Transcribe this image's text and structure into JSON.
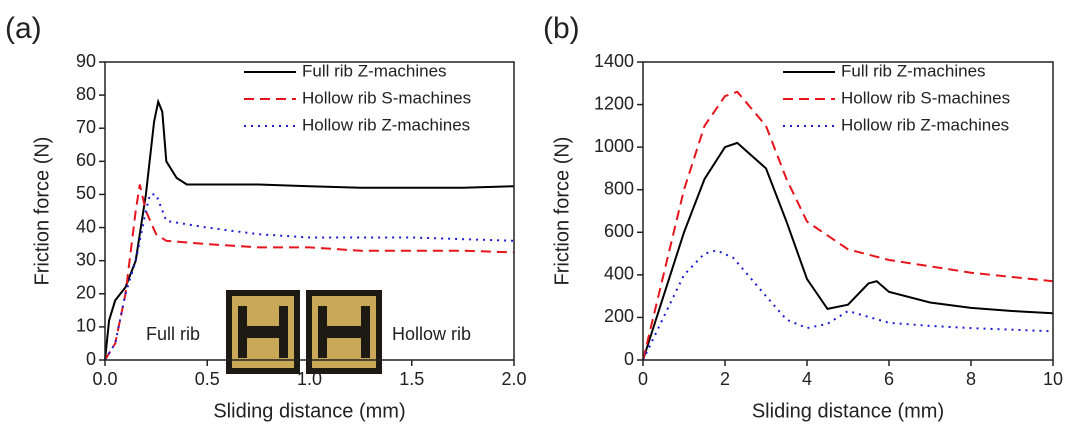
{
  "chart_data": [
    {
      "type": "line",
      "panel_label": "(a)",
      "xlabel": "Sliding distance (mm)",
      "ylabel": "Friction force (N)",
      "xlim": [
        0,
        2
      ],
      "xticks": [
        {
          "value": 0,
          "label": "0.0"
        },
        0.5,
        {
          "value": 1,
          "label": "1.0"
        },
        1.5,
        {
          "value": 2,
          "label": "2.0"
        }
      ],
      "ylim": [
        0,
        90
      ],
      "yticks": [
        0,
        10,
        20,
        30,
        40,
        50,
        60,
        70,
        80,
        90
      ],
      "legend": "upper right",
      "annotations": [
        "Full rib",
        "Hollow rib"
      ],
      "series": [
        {
          "name": "Full rib Z-machines",
          "color": "#000000",
          "line_style": "solid",
          "x": [
            0,
            0.02,
            0.05,
            0.1,
            0.15,
            0.2,
            0.24,
            0.26,
            0.28,
            0.3,
            0.35,
            0.4,
            0.5,
            0.75,
            1.0,
            1.25,
            1.5,
            1.75,
            2.0
          ],
          "values": [
            0,
            12,
            18,
            22,
            30,
            50,
            72,
            78,
            75,
            60,
            55,
            53,
            53,
            53,
            52.5,
            52,
            52,
            52,
            52.5
          ]
        },
        {
          "name": "Hollow rib S-machines",
          "color": "#e8141b",
          "line_style": "dashed",
          "x": [
            0,
            0.05,
            0.1,
            0.15,
            0.17,
            0.2,
            0.25,
            0.3,
            0.5,
            0.75,
            1.0,
            1.25,
            1.5,
            1.75,
            2.0
          ],
          "values": [
            0,
            5,
            20,
            45,
            53,
            45,
            38,
            36,
            35,
            34,
            34,
            33,
            33,
            33,
            32.5
          ]
        },
        {
          "name": "Hollow rib Z-machines",
          "color": "#1a1ad6",
          "line_style": "dotted",
          "x": [
            0,
            0.05,
            0.1,
            0.15,
            0.2,
            0.22,
            0.25,
            0.3,
            0.5,
            0.75,
            1.0,
            1.5,
            2.0
          ],
          "values": [
            0,
            5,
            20,
            30,
            45,
            50,
            50,
            42,
            40,
            38,
            37,
            37,
            36
          ]
        }
      ]
    },
    {
      "type": "line",
      "panel_label": "(b)",
      "xlabel": "Sliding distance (mm)",
      "ylabel": "Friction force (N)",
      "xlim": [
        0,
        10
      ],
      "xticks": [
        0,
        2,
        4,
        6,
        8,
        10
      ],
      "ylim": [
        0,
        1400
      ],
      "yticks": [
        0,
        200,
        400,
        600,
        800,
        1000,
        1200,
        1400
      ],
      "legend": "upper right",
      "series": [
        {
          "name": "Full rib Z-machines",
          "color": "#000000",
          "line_style": "solid",
          "x": [
            0,
            0.5,
            1,
            1.5,
            2,
            2.3,
            3,
            3.5,
            4,
            4.5,
            5,
            5.5,
            5.7,
            6,
            7,
            8,
            9,
            10
          ],
          "values": [
            0,
            300,
            600,
            850,
            1000,
            1020,
            900,
            650,
            380,
            240,
            260,
            360,
            370,
            320,
            270,
            245,
            230,
            220
          ]
        },
        {
          "name": "Hollow rib S-machines",
          "color": "#e8141b",
          "line_style": "dashed",
          "x": [
            0,
            0.5,
            1,
            1.5,
            2,
            2.3,
            3,
            3.5,
            4,
            5,
            6,
            7,
            8,
            9,
            10
          ],
          "values": [
            0,
            400,
            800,
            1100,
            1240,
            1260,
            1100,
            850,
            650,
            520,
            470,
            440,
            410,
            390,
            370
          ]
        },
        {
          "name": "Hollow rib Z-machines",
          "color": "#1a1ad6",
          "line_style": "dotted",
          "x": [
            0,
            0.5,
            1,
            1.5,
            1.8,
            2.2,
            3,
            3.5,
            4,
            4.5,
            5,
            6,
            7,
            8,
            10
          ],
          "values": [
            0,
            200,
            400,
            500,
            515,
            480,
            300,
            190,
            150,
            170,
            230,
            175,
            160,
            150,
            135
          ]
        }
      ]
    }
  ]
}
